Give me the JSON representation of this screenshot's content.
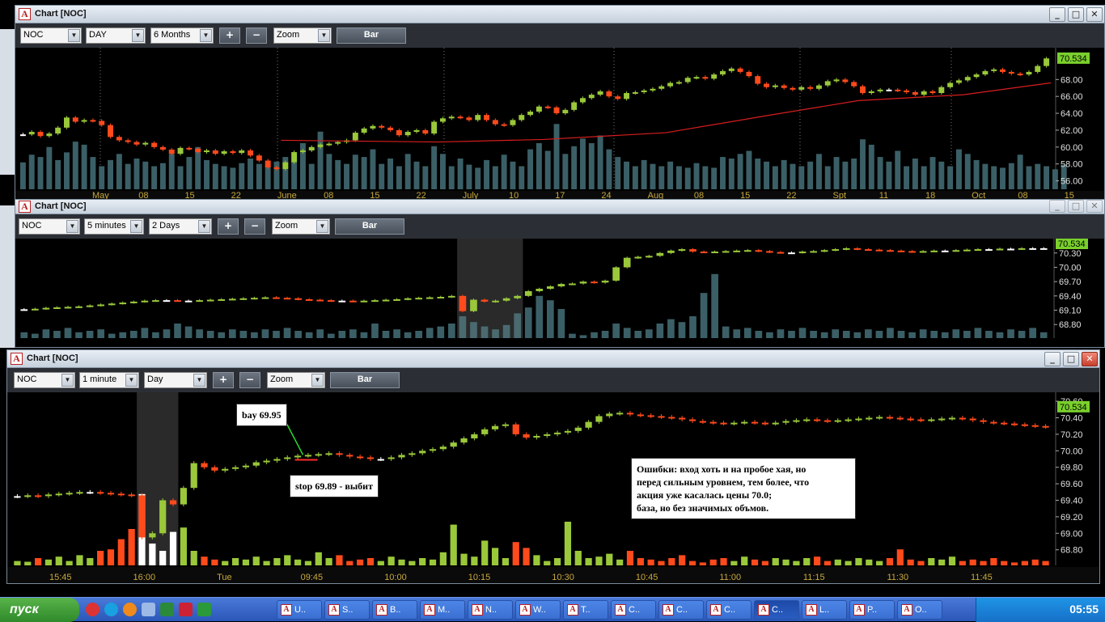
{
  "windows": [
    {
      "title": "Chart [NOC]",
      "symbol": "NOC",
      "interval": "DAY",
      "range": "6 Months",
      "plus_label": "+",
      "minus_label": "−",
      "zoom_label": "Zoom",
      "chart_type_label": "Bar",
      "last_price": "70.534",
      "y_ticks": [
        "68.00",
        "66.00",
        "64.00",
        "62.00",
        "60.00",
        "58.00",
        "56.00"
      ],
      "x_ticks": [
        "May",
        "08",
        "15",
        "22",
        "June",
        "08",
        "15",
        "22",
        "July",
        "10",
        "17",
        "24",
        "Aug",
        "08",
        "15",
        "22",
        "Spt",
        "11",
        "18",
        "Oct",
        "08",
        "15"
      ]
    },
    {
      "title": "Chart [NOC]",
      "symbol": "NOC",
      "interval": "5 minutes",
      "range": "2 Days",
      "plus_label": "+",
      "minus_label": "−",
      "zoom_label": "Zoom",
      "chart_type_label": "Bar",
      "last_price": "70.534",
      "y_ticks": [
        "70.30",
        "70.00",
        "69.70",
        "69.40",
        "69.10",
        "68.80"
      ]
    },
    {
      "title": "Chart [NOC]",
      "symbol": "NOC",
      "interval": "1 minute",
      "range": "Day",
      "plus_label": "+",
      "minus_label": "−",
      "zoom_label": "Zoom",
      "chart_type_label": "Bar",
      "last_price": "70.534",
      "y_ticks": [
        "70.60",
        "70.40",
        "70.20",
        "70.00",
        "69.80",
        "69.60",
        "69.40",
        "69.20",
        "69.00",
        "68.80"
      ],
      "x_ticks": [
        "15:45",
        "16:00",
        "Tue",
        "09:45",
        "10:00",
        "10:15",
        "10:30",
        "10:45",
        "11:00",
        "11:15",
        "11:30",
        "11:45"
      ]
    }
  ],
  "annotations": {
    "buy_label": "bay 69.95",
    "stop_label": "stop 69.89 - выбит",
    "comment_lines": [
      "Ошибки: вход хоть и на пробое хая, но",
      "перед сильным уровнем, тем более, что",
      "акция уже касалась цены 70.0;",
      "база, но без значимых объмов."
    ]
  },
  "colors": {
    "up": "#9ac83a",
    "down": "#ff4a1c",
    "neutral": "#ffffff",
    "volume": "#3b5f66",
    "ma": "#d81e1e",
    "price_tag": "#7ad02c",
    "session_shade": "#2a2a2a"
  },
  "taskbar": {
    "start_label": "пуск",
    "tasks": [
      "U..",
      "S..",
      "B..",
      "M..",
      "N..",
      "W..",
      "T..",
      "C..",
      "C..",
      "C..",
      "C..",
      "L..",
      "P..",
      "O.."
    ],
    "clock": "05:55"
  },
  "chart_data": [
    {
      "type": "bar",
      "title": "Chart [NOC] DAY 6 Months",
      "ylim": [
        55,
        71
      ],
      "last": 70.534,
      "y_ticks": [
        68,
        66,
        64,
        62,
        60,
        58,
        56
      ],
      "closes": [
        61.5,
        61.8,
        61.3,
        61.6,
        62.3,
        63.5,
        63.0,
        63.2,
        63.1,
        62.6,
        61.2,
        60.8,
        60.6,
        60.3,
        60.5,
        60.0,
        59.7,
        59.2,
        59.9,
        59.8,
        59.4,
        59.6,
        59.2,
        59.5,
        59.3,
        59.6,
        59.0,
        58.4,
        57.6,
        57.4,
        58.2,
        59.4,
        59.6,
        60.0,
        60.3,
        60.4,
        60.6,
        60.8,
        61.7,
        62.2,
        62.5,
        62.3,
        62.0,
        61.4,
        61.8,
        62.0,
        61.6,
        63.0,
        63.4,
        63.6,
        63.5,
        63.2,
        63.8,
        63.2,
        62.7,
        62.6,
        63.2,
        63.8,
        64.2,
        64.8,
        64.7,
        64.0,
        64.4,
        65.3,
        65.8,
        66.2,
        66.6,
        66.0,
        65.7,
        66.4,
        66.5,
        66.7,
        66.9,
        67.2,
        67.6,
        67.7,
        68.2,
        68.3,
        68.1,
        68.6,
        69.0,
        69.3,
        68.9,
        68.4,
        67.5,
        67.1,
        67.3,
        67.0,
        66.8,
        67.1,
        66.9,
        67.3,
        67.8,
        68.0,
        67.7,
        67.2,
        66.4,
        66.6,
        66.8,
        66.8,
        66.7,
        66.5,
        66.2,
        66.6,
        66.4,
        67.1,
        67.6,
        67.9,
        68.3,
        68.6,
        69.0,
        69.2,
        68.9,
        68.7,
        68.6,
        68.9,
        69.6,
        70.5
      ],
      "volumes": [
        0.35,
        0.45,
        0.42,
        0.55,
        0.38,
        0.48,
        0.62,
        0.58,
        0.42,
        0.3,
        0.38,
        0.46,
        0.33,
        0.4,
        0.36,
        0.3,
        0.34,
        0.46,
        0.3,
        0.42,
        0.55,
        0.38,
        0.33,
        0.3,
        0.28,
        0.34,
        0.4,
        0.33,
        0.3,
        0.36,
        0.42,
        0.36,
        0.6,
        0.33,
        0.75,
        0.46,
        0.38,
        0.33,
        0.45,
        0.42,
        0.52,
        0.33,
        0.4,
        0.3,
        0.46,
        0.36,
        0.3,
        0.56,
        0.46,
        0.3,
        0.4,
        0.32,
        0.28,
        0.38,
        0.3,
        0.45,
        0.36,
        0.3,
        0.52,
        0.6,
        0.5,
        0.85,
        0.46,
        0.56,
        0.66,
        0.6,
        0.7,
        0.52,
        0.42,
        0.36,
        0.3,
        0.38,
        0.33,
        0.3,
        0.36,
        0.3,
        0.28,
        0.34,
        0.3,
        0.28,
        0.42,
        0.4,
        0.46,
        0.5,
        0.4,
        0.36,
        0.3,
        0.38,
        0.33,
        0.3,
        0.36,
        0.46,
        0.3,
        0.42,
        0.36,
        0.4,
        0.65,
        0.58,
        0.42,
        0.36,
        0.5,
        0.3,
        0.4,
        0.3,
        0.42,
        0.36,
        0.3,
        0.52,
        0.46,
        0.38,
        0.33,
        0.3,
        0.28,
        0.34,
        0.45,
        0.3,
        0.33,
        0.3,
        0.26,
        0.32
      ],
      "moving_average": [
        [
          30,
          60.8
        ],
        [
          48,
          60.6
        ],
        [
          60,
          60.9
        ],
        [
          74,
          61.7
        ],
        [
          86,
          63.8
        ],
        [
          96,
          65.5
        ],
        [
          108,
          66.2
        ],
        [
          118,
          67.6
        ]
      ]
    },
    {
      "type": "bar",
      "title": "Chart [NOC] 5 minutes 2 Days",
      "ylim": [
        68.6,
        70.5
      ],
      "last": 70.534,
      "y_ticks": [
        70.3,
        70.0,
        69.7,
        69.4,
        69.1,
        68.8
      ],
      "closes": [
        69.12,
        69.13,
        69.15,
        69.16,
        69.17,
        69.18,
        69.2,
        69.22,
        69.24,
        69.26,
        69.28,
        69.3,
        69.31,
        69.31,
        69.3,
        69.3,
        69.31,
        69.32,
        69.33,
        69.34,
        69.35,
        69.36,
        69.37,
        69.36,
        69.35,
        69.33,
        69.32,
        69.31,
        69.3,
        69.3,
        69.29,
        69.3,
        69.31,
        69.32,
        69.33,
        69.35,
        69.36,
        69.37,
        69.38,
        69.4,
        69.08,
        69.32,
        69.28,
        69.3,
        69.35,
        69.4,
        69.5,
        69.55,
        69.6,
        69.65,
        69.66,
        69.7,
        69.68,
        69.72,
        70.0,
        70.2,
        70.22,
        70.24,
        70.3,
        70.35,
        70.38,
        70.33,
        70.32,
        70.33,
        70.34,
        70.35,
        70.36,
        70.34,
        70.32,
        70.31,
        70.31,
        70.33,
        70.34,
        70.36,
        70.38,
        70.4,
        70.38,
        70.37,
        70.36,
        70.35,
        70.34,
        70.33,
        70.34,
        70.35,
        70.35,
        70.36,
        70.37,
        70.38,
        70.38,
        70.39,
        70.39,
        70.4,
        70.4,
        70.4
      ],
      "volumes": [
        0.08,
        0.06,
        0.12,
        0.1,
        0.14,
        0.08,
        0.1,
        0.12,
        0.06,
        0.08,
        0.1,
        0.14,
        0.08,
        0.12,
        0.2,
        0.16,
        0.12,
        0.1,
        0.08,
        0.12,
        0.1,
        0.08,
        0.12,
        0.1,
        0.14,
        0.1,
        0.08,
        0.12,
        0.06,
        0.1,
        0.12,
        0.08,
        0.2,
        0.1,
        0.12,
        0.08,
        0.1,
        0.14,
        0.16,
        0.2,
        0.3,
        0.22,
        0.16,
        0.12,
        0.18,
        0.34,
        0.42,
        0.58,
        0.52,
        0.4,
        0.06,
        0.04,
        0.08,
        0.1,
        0.2,
        0.14,
        0.1,
        0.12,
        0.2,
        0.26,
        0.22,
        0.3,
        0.62,
        0.88,
        0.16,
        0.12,
        0.14,
        0.1,
        0.08,
        0.12,
        0.1,
        0.14,
        0.1,
        0.08,
        0.12,
        0.1,
        0.08,
        0.12,
        0.1,
        0.14,
        0.1,
        0.08,
        0.12,
        0.1,
        0.08,
        0.12,
        0.1,
        0.14,
        0.1,
        0.08,
        0.12,
        0.1,
        0.14,
        0.08
      ],
      "session_shade_bars": [
        40,
        46
      ]
    },
    {
      "type": "bar",
      "title": "Chart [NOC] 1 minute Day",
      "ylim": [
        68.65,
        70.65
      ],
      "last": 70.534,
      "y_ticks": [
        70.6,
        70.4,
        70.2,
        70.0,
        69.8,
        69.6,
        69.4,
        69.2,
        69.0,
        68.8
      ],
      "closes": [
        69.45,
        69.46,
        69.45,
        69.47,
        69.48,
        69.49,
        69.5,
        69.5,
        69.49,
        69.48,
        69.47,
        69.46,
        68.95,
        69.0,
        69.4,
        69.35,
        69.55,
        69.85,
        69.8,
        69.76,
        69.78,
        69.8,
        69.82,
        69.86,
        69.88,
        69.9,
        69.92,
        69.94,
        69.95,
        69.96,
        69.97,
        69.95,
        69.93,
        69.92,
        69.9,
        69.9,
        69.92,
        69.95,
        69.97,
        70.0,
        70.02,
        70.05,
        70.1,
        70.15,
        70.2,
        70.26,
        70.3,
        70.32,
        70.2,
        70.16,
        70.18,
        70.2,
        70.22,
        70.24,
        70.28,
        70.35,
        70.42,
        70.45,
        70.46,
        70.44,
        70.43,
        70.42,
        70.41,
        70.4,
        70.38,
        70.36,
        70.35,
        70.34,
        70.33,
        70.34,
        70.35,
        70.34,
        70.33,
        70.34,
        70.36,
        70.37,
        70.38,
        70.37,
        70.36,
        70.37,
        70.38,
        70.39,
        70.4,
        70.41,
        70.4,
        70.39,
        70.38,
        70.37,
        70.38,
        70.39,
        70.4,
        70.39,
        70.37,
        70.35,
        70.34,
        70.33,
        70.32,
        70.31,
        70.3,
        70.29
      ],
      "volumes": [
        0.06,
        0.05,
        0.1,
        0.08,
        0.12,
        0.06,
        0.14,
        0.1,
        0.2,
        0.22,
        0.36,
        0.5,
        0.98,
        0.3,
        0.2,
        0.46,
        0.52,
        0.2,
        0.12,
        0.08,
        0.06,
        0.1,
        0.08,
        0.12,
        0.06,
        0.1,
        0.14,
        0.08,
        0.06,
        0.18,
        0.1,
        0.14,
        0.06,
        0.08,
        0.1,
        0.06,
        0.12,
        0.08,
        0.06,
        0.1,
        0.08,
        0.18,
        0.56,
        0.16,
        0.12,
        0.34,
        0.24,
        0.1,
        0.32,
        0.24,
        0.14,
        0.06,
        0.1,
        0.6,
        0.2,
        0.1,
        0.12,
        0.16,
        0.08,
        0.2,
        0.1,
        0.08,
        0.06,
        0.1,
        0.14,
        0.06,
        0.04,
        0.08,
        0.1,
        0.06,
        0.12,
        0.08,
        0.06,
        0.1,
        0.08,
        0.06,
        0.1,
        0.12,
        0.06,
        0.08,
        0.06,
        0.1,
        0.08,
        0.06,
        0.1,
        0.22,
        0.08,
        0.06,
        0.1,
        0.08,
        0.12,
        0.06,
        0.08,
        0.06,
        0.1,
        0.06,
        0.04,
        0.06,
        0.08,
        0.06
      ],
      "session_shade_bars": [
        12,
        16
      ],
      "entry": 69.95,
      "stop": 69.89
    }
  ]
}
